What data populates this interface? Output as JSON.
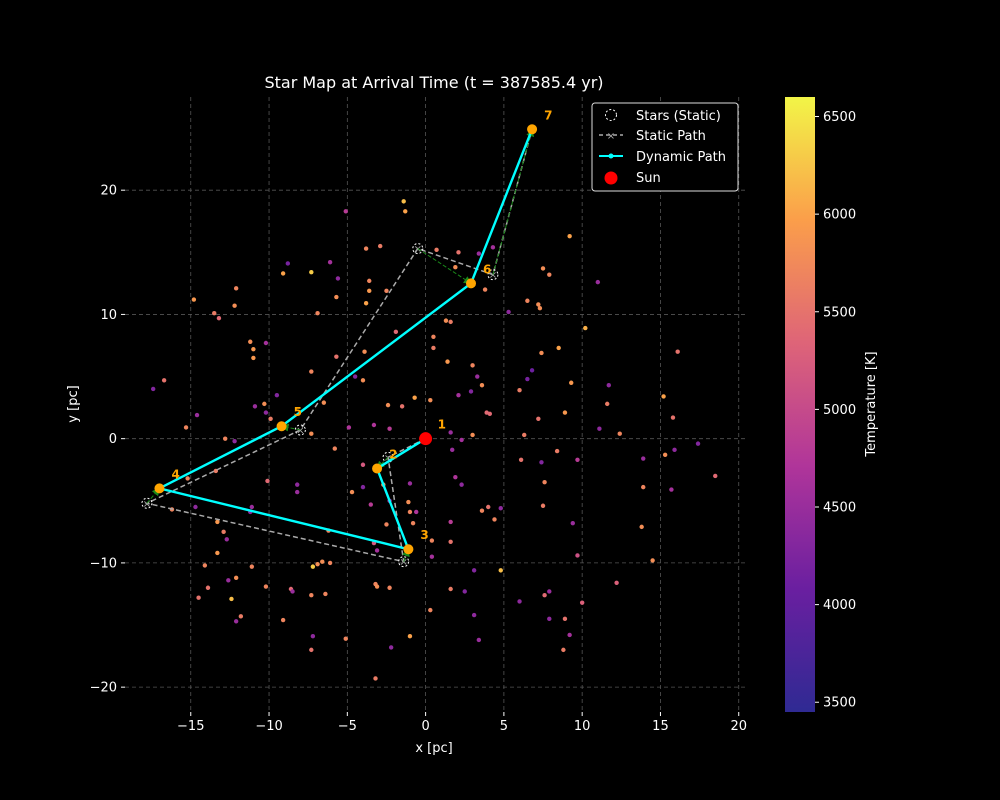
{
  "chart_data": {
    "type": "scatter",
    "title": "Star Map at Arrival Time (t = 387585.4 yr)",
    "xlabel": "x [pc]",
    "ylabel": "y [pc]",
    "xlim": [
      -19.2,
      20.4
    ],
    "ylim": [
      -22.0,
      27.5
    ],
    "x_ticks": [
      -15,
      -10,
      -5,
      0,
      5,
      10,
      15,
      20
    ],
    "y_ticks": [
      -20,
      -10,
      0,
      10,
      20
    ],
    "grid": true,
    "legend_position": "top-right",
    "legend": [
      {
        "key": "stars",
        "label": "Stars (Static)"
      },
      {
        "key": "static",
        "label": "Static Path"
      },
      {
        "key": "dynamic",
        "label": "Dynamic Path"
      },
      {
        "key": "sun",
        "label": "Sun"
      }
    ],
    "colorbar": {
      "label": "Temperature [K]",
      "min": 3450,
      "max": 6600,
      "ticks": [
        3500,
        4000,
        4500,
        5000,
        5500,
        6000,
        6500
      ]
    },
    "colors": {
      "background": "#000000",
      "grid": "#555555",
      "dynamic_path": "#00ffff",
      "static_path": "#aaaaaa",
      "arrow": "#1a8a1a",
      "sun": "#ff0000",
      "waypoint": "#ffa500",
      "label": "#ffa500"
    },
    "sun": {
      "x": 0,
      "y": 0
    },
    "dynamic_path": [
      {
        "label": "1",
        "x": 0.0,
        "y": 0.0
      },
      {
        "label": "2",
        "x": -3.1,
        "y": -2.4
      },
      {
        "label": "3",
        "x": -1.1,
        "y": -8.9
      },
      {
        "label": "4",
        "x": -17.0,
        "y": -4.0
      },
      {
        "label": "5",
        "x": -9.2,
        "y": 1.0
      },
      {
        "label": "6",
        "x": 2.9,
        "y": 12.5
      },
      {
        "label": "7",
        "x": 6.8,
        "y": 24.9
      }
    ],
    "static_path": [
      {
        "x": 0.0,
        "y": 0.0
      },
      {
        "x": -2.4,
        "y": -1.5
      },
      {
        "x": -1.4,
        "y": -9.9
      },
      {
        "x": -17.8,
        "y": -5.2
      },
      {
        "x": -8.0,
        "y": 0.7
      },
      {
        "x": -0.5,
        "y": 15.3
      },
      {
        "x": 4.3,
        "y": 13.2
      },
      {
        "x": 6.8,
        "y": 24.9
      }
    ],
    "background_stars": [
      {
        "x": -14.8,
        "y": 11.2,
        "t": 5900
      },
      {
        "x": -12.1,
        "y": 12.1,
        "t": 5700
      },
      {
        "x": -12.2,
        "y": 10.7,
        "t": 5800
      },
      {
        "x": -11.2,
        "y": 7.8,
        "t": 5800
      },
      {
        "x": -11.0,
        "y": 7.2,
        "t": 5900
      },
      {
        "x": -11.0,
        "y": 6.5,
        "t": 5900
      },
      {
        "x": -13.5,
        "y": 10.1,
        "t": 5600
      },
      {
        "x": -13.2,
        "y": 9.7,
        "t": 5400
      },
      {
        "x": -10.2,
        "y": 7.7,
        "t": 4600
      },
      {
        "x": -9.1,
        "y": 13.3,
        "t": 6000
      },
      {
        "x": -7.3,
        "y": 13.4,
        "t": 6300
      },
      {
        "x": -8.8,
        "y": 14.1,
        "t": 4200
      },
      {
        "x": -6.9,
        "y": 10.1,
        "t": 5700
      },
      {
        "x": -5.7,
        "y": 11.4,
        "t": 5800
      },
      {
        "x": -5.1,
        "y": 18.3,
        "t": 4800
      },
      {
        "x": -3.8,
        "y": 15.3,
        "t": 5700
      },
      {
        "x": -2.9,
        "y": 15.5,
        "t": 5600
      },
      {
        "x": -1.4,
        "y": 19.1,
        "t": 6200
      },
      {
        "x": -3.6,
        "y": 12.7,
        "t": 5700
      },
      {
        "x": -3.6,
        "y": 11.9,
        "t": 5900
      },
      {
        "x": -3.8,
        "y": 10.9,
        "t": 6000
      },
      {
        "x": -2.5,
        "y": 11.9,
        "t": 5700
      },
      {
        "x": -1.9,
        "y": 8.6,
        "t": 5400
      },
      {
        "x": -1.3,
        "y": 18.3,
        "t": 6000
      },
      {
        "x": 0.7,
        "y": 15.2,
        "t": 5600
      },
      {
        "x": 2.1,
        "y": 15.0,
        "t": 5500
      },
      {
        "x": 1.9,
        "y": 13.8,
        "t": 5800
      },
      {
        "x": 4.3,
        "y": 15.4,
        "t": 4600
      },
      {
        "x": 3.4,
        "y": 14.9,
        "t": 4500
      },
      {
        "x": 3.8,
        "y": 12.0,
        "t": 5700
      },
      {
        "x": 1.3,
        "y": 9.5,
        "t": 5800
      },
      {
        "x": 1.6,
        "y": 9.4,
        "t": 5600
      },
      {
        "x": 0.5,
        "y": 8.2,
        "t": 5700
      },
      {
        "x": 0.5,
        "y": 7.3,
        "t": 5600
      },
      {
        "x": 1.4,
        "y": 6.2,
        "t": 5900
      },
      {
        "x": 3.0,
        "y": 5.9,
        "t": 5700
      },
      {
        "x": 3.6,
        "y": 4.3,
        "t": 5800
      },
      {
        "x": 2.9,
        "y": 3.8,
        "t": 4300
      },
      {
        "x": 3.3,
        "y": 5.0,
        "t": 4500
      },
      {
        "x": 6.5,
        "y": 11.1,
        "t": 5700
      },
      {
        "x": 7.2,
        "y": 10.8,
        "t": 5800
      },
      {
        "x": 7.3,
        "y": 10.5,
        "t": 5800
      },
      {
        "x": 7.5,
        "y": 13.7,
        "t": 5800
      },
      {
        "x": 7.9,
        "y": 13.2,
        "t": 5700
      },
      {
        "x": 9.2,
        "y": 16.3,
        "t": 6000
      },
      {
        "x": 11.0,
        "y": 12.6,
        "t": 4500
      },
      {
        "x": 10.2,
        "y": 8.9,
        "t": 6100
      },
      {
        "x": 8.5,
        "y": 7.3,
        "t": 6000
      },
      {
        "x": 7.4,
        "y": 6.9,
        "t": 5800
      },
      {
        "x": 9.3,
        "y": 4.5,
        "t": 5900
      },
      {
        "x": 6.0,
        "y": 3.9,
        "t": 5600
      },
      {
        "x": 6.5,
        "y": 4.8,
        "t": 4200
      },
      {
        "x": 6.8,
        "y": 5.5,
        "t": 4100
      },
      {
        "x": 8.9,
        "y": 2.1,
        "t": 5900
      },
      {
        "x": 11.7,
        "y": 4.3,
        "t": 4400
      },
      {
        "x": 11.6,
        "y": 2.8,
        "t": 5600
      },
      {
        "x": 12.4,
        "y": 0.4,
        "t": 5700
      },
      {
        "x": 15.2,
        "y": 3.4,
        "t": 6000
      },
      {
        "x": 15.8,
        "y": 1.7,
        "t": 5500
      },
      {
        "x": 16.1,
        "y": 7.0,
        "t": 5500
      },
      {
        "x": 15.3,
        "y": -1.3,
        "t": 5800
      },
      {
        "x": 15.9,
        "y": -0.9,
        "t": 4400
      },
      {
        "x": 13.9,
        "y": -1.6,
        "t": 4500
      },
      {
        "x": 17.4,
        "y": -0.4,
        "t": 4300
      },
      {
        "x": 18.5,
        "y": -3.0,
        "t": 5400
      },
      {
        "x": 15.7,
        "y": -4.1,
        "t": 4600
      },
      {
        "x": 13.9,
        "y": -3.9,
        "t": 5700
      },
      {
        "x": 13.8,
        "y": -7.1,
        "t": 5800
      },
      {
        "x": 14.5,
        "y": -9.8,
        "t": 5800
      },
      {
        "x": 12.2,
        "y": -11.6,
        "t": 5300
      },
      {
        "x": 10.0,
        "y": -13.2,
        "t": 5300
      },
      {
        "x": 8.9,
        "y": -14.5,
        "t": 5500
      },
      {
        "x": 9.2,
        "y": -15.8,
        "t": 4600
      },
      {
        "x": 8.8,
        "y": -17.0,
        "t": 5600
      },
      {
        "x": 7.9,
        "y": -14.5,
        "t": 4400
      },
      {
        "x": 7.6,
        "y": -12.6,
        "t": 5400
      },
      {
        "x": 7.9,
        "y": -12.3,
        "t": 4500
      },
      {
        "x": 7.5,
        "y": -5.4,
        "t": 5600
      },
      {
        "x": 7.6,
        "y": -3.5,
        "t": 5700
      },
      {
        "x": 9.7,
        "y": -9.4,
        "t": 5100
      },
      {
        "x": 9.4,
        "y": -6.8,
        "t": 4500
      },
      {
        "x": 9.7,
        "y": -1.7,
        "t": 4800
      },
      {
        "x": 11.1,
        "y": 0.8,
        "t": 4400
      },
      {
        "x": 8.4,
        "y": -1.0,
        "t": 5600
      },
      {
        "x": 7.4,
        "y": -1.9,
        "t": 4300
      },
      {
        "x": 7.2,
        "y": 1.6,
        "t": 5500
      },
      {
        "x": 6.3,
        "y": 0.3,
        "t": 5600
      },
      {
        "x": 6.1,
        "y": -1.7,
        "t": 5500
      },
      {
        "x": 6.0,
        "y": -13.1,
        "t": 4400
      },
      {
        "x": 4.8,
        "y": -10.6,
        "t": 6200
      },
      {
        "x": 3.1,
        "y": -10.6,
        "t": 4300
      },
      {
        "x": 3.1,
        "y": -14.2,
        "t": 4400
      },
      {
        "x": 3.4,
        "y": -16.2,
        "t": 4500
      },
      {
        "x": 4.4,
        "y": -6.5,
        "t": 5700
      },
      {
        "x": 4.0,
        "y": -5.5,
        "t": 5500
      },
      {
        "x": 3.6,
        "y": -5.8,
        "t": 5700
      },
      {
        "x": 4.8,
        "y": -5.6,
        "t": 4400
      },
      {
        "x": 1.6,
        "y": -6.7,
        "t": 4800
      },
      {
        "x": 1.6,
        "y": -8.3,
        "t": 5500
      },
      {
        "x": 0.4,
        "y": -8.2,
        "t": 5700
      },
      {
        "x": 0.4,
        "y": -9.5,
        "t": 4600
      },
      {
        "x": -0.8,
        "y": -6.8,
        "t": 5700
      },
      {
        "x": -1.0,
        "y": -5.9,
        "t": 5700
      },
      {
        "x": -1.1,
        "y": -5.1,
        "t": 5800
      },
      {
        "x": -0.6,
        "y": -5.9,
        "t": 4700
      },
      {
        "x": 1.9,
        "y": -3.1,
        "t": 4700
      },
      {
        "x": 2.3,
        "y": -3.7,
        "t": 4400
      },
      {
        "x": 1.7,
        "y": -0.9,
        "t": 4500
      },
      {
        "x": 2.1,
        "y": 3.5,
        "t": 4600
      },
      {
        "x": 3.9,
        "y": 2.1,
        "t": 5400
      },
      {
        "x": 4.1,
        "y": 2.0,
        "t": 5400
      },
      {
        "x": 3.0,
        "y": 0.3,
        "t": 5800
      },
      {
        "x": -0.7,
        "y": 3.3,
        "t": 6000
      },
      {
        "x": 0.3,
        "y": 3.1,
        "t": 5800
      },
      {
        "x": -1.5,
        "y": 2.6,
        "t": 5500
      },
      {
        "x": -2.4,
        "y": 2.7,
        "t": 5800
      },
      {
        "x": -3.3,
        "y": 1.1,
        "t": 4700
      },
      {
        "x": -2.3,
        "y": 0.8,
        "t": 4800
      },
      {
        "x": -4.0,
        "y": 4.7,
        "t": 5800
      },
      {
        "x": -4.5,
        "y": 5.0,
        "t": 4300
      },
      {
        "x": -3.9,
        "y": 7.0,
        "t": 5800
      },
      {
        "x": -5.7,
        "y": 6.6,
        "t": 5500
      },
      {
        "x": -6.5,
        "y": 2.9,
        "t": 5800
      },
      {
        "x": -7.3,
        "y": 5.4,
        "t": 5700
      },
      {
        "x": -6.1,
        "y": 14.2,
        "t": 4600
      },
      {
        "x": -5.6,
        "y": 12.9,
        "t": 4400
      },
      {
        "x": -9.5,
        "y": 3.5,
        "t": 4300
      },
      {
        "x": -10.3,
        "y": 2.8,
        "t": 5800
      },
      {
        "x": -10.9,
        "y": 2.6,
        "t": 4500
      },
      {
        "x": -10.2,
        "y": 2.1,
        "t": 4400
      },
      {
        "x": -9.9,
        "y": 1.6,
        "t": 5600
      },
      {
        "x": -7.3,
        "y": 0.4,
        "t": 5800
      },
      {
        "x": -5.8,
        "y": -0.8,
        "t": 5700
      },
      {
        "x": -4.9,
        "y": 0.9,
        "t": 4700
      },
      {
        "x": -4.0,
        "y": -2.1,
        "t": 5200
      },
      {
        "x": -4.0,
        "y": -3.9,
        "t": 4300
      },
      {
        "x": -4.7,
        "y": -4.3,
        "t": 5800
      },
      {
        "x": -3.5,
        "y": -5.3,
        "t": 4800
      },
      {
        "x": -3.3,
        "y": -8.4,
        "t": 5200
      },
      {
        "x": -3.1,
        "y": -9.0,
        "t": 4600
      },
      {
        "x": -2.5,
        "y": -6.9,
        "t": 5700
      },
      {
        "x": -2.3,
        "y": -5.0,
        "t": 4500
      },
      {
        "x": -2.7,
        "y": -3.7,
        "t": 5800
      },
      {
        "x": -1.0,
        "y": -3.6,
        "t": 4500
      },
      {
        "x": -6.2,
        "y": -7.4,
        "t": 5700
      },
      {
        "x": -6.6,
        "y": -9.9,
        "t": 5800
      },
      {
        "x": -6.1,
        "y": -10.0,
        "t": 5700
      },
      {
        "x": -6.9,
        "y": -10.1,
        "t": 5800
      },
      {
        "x": -7.2,
        "y": -10.3,
        "t": 6300
      },
      {
        "x": -6.4,
        "y": -12.5,
        "t": 5700
      },
      {
        "x": -7.3,
        "y": -12.6,
        "t": 5700
      },
      {
        "x": -8.6,
        "y": -12.1,
        "t": 5400
      },
      {
        "x": -8.5,
        "y": -12.3,
        "t": 4500
      },
      {
        "x": -9.1,
        "y": -14.6,
        "t": 5700
      },
      {
        "x": -7.2,
        "y": -15.9,
        "t": 4400
      },
      {
        "x": -7.3,
        "y": -17.0,
        "t": 5500
      },
      {
        "x": -5.1,
        "y": -16.1,
        "t": 5700
      },
      {
        "x": -3.2,
        "y": -11.7,
        "t": 5700
      },
      {
        "x": -3.1,
        "y": -11.9,
        "t": 5800
      },
      {
        "x": -2.3,
        "y": -12.0,
        "t": 5700
      },
      {
        "x": -2.2,
        "y": -16.8,
        "t": 4400
      },
      {
        "x": -1.0,
        "y": -15.9,
        "t": 6000
      },
      {
        "x": -3.2,
        "y": -19.3,
        "t": 5600
      },
      {
        "x": 0.3,
        "y": -13.8,
        "t": 5700
      },
      {
        "x": 1.6,
        "y": -12.1,
        "t": 5600
      },
      {
        "x": 2.5,
        "y": -12.3,
        "t": 4300
      },
      {
        "x": -10.2,
        "y": -11.9,
        "t": 5700
      },
      {
        "x": -11.1,
        "y": -10.3,
        "t": 5700
      },
      {
        "x": -12.1,
        "y": -11.2,
        "t": 5800
      },
      {
        "x": -12.6,
        "y": -11.4,
        "t": 4500
      },
      {
        "x": -12.4,
        "y": -12.9,
        "t": 6200
      },
      {
        "x": -11.8,
        "y": -14.3,
        "t": 5600
      },
      {
        "x": -12.1,
        "y": -14.7,
        "t": 4500
      },
      {
        "x": -13.9,
        "y": -12.0,
        "t": 5500
      },
      {
        "x": -14.5,
        "y": -12.8,
        "t": 5500
      },
      {
        "x": -14.1,
        "y": -10.2,
        "t": 5700
      },
      {
        "x": -13.3,
        "y": -9.2,
        "t": 5900
      },
      {
        "x": -12.7,
        "y": -8.1,
        "t": 4500
      },
      {
        "x": -12.9,
        "y": -7.5,
        "t": 5600
      },
      {
        "x": -13.3,
        "y": -6.7,
        "t": 5900
      },
      {
        "x": -11.2,
        "y": -5.9,
        "t": 4400
      },
      {
        "x": -11.1,
        "y": -5.5,
        "t": 4500
      },
      {
        "x": -12.8,
        "y": 0.0,
        "t": 5700
      },
      {
        "x": -12.2,
        "y": -0.2,
        "t": 4400
      },
      {
        "x": -13.4,
        "y": -2.6,
        "t": 5600
      },
      {
        "x": -15.2,
        "y": -3.2,
        "t": 5700
      },
      {
        "x": -15.3,
        "y": 0.9,
        "t": 5700
      },
      {
        "x": -14.6,
        "y": 1.9,
        "t": 4500
      },
      {
        "x": -16.7,
        "y": 4.7,
        "t": 5500
      },
      {
        "x": -17.4,
        "y": 4.0,
        "t": 4300
      },
      {
        "x": -16.2,
        "y": -5.7,
        "t": 5700
      },
      {
        "x": -14.7,
        "y": -5.5,
        "t": 4400
      },
      {
        "x": -10.1,
        "y": -3.4,
        "t": 5400
      },
      {
        "x": -8.2,
        "y": -3.7,
        "t": 4400
      },
      {
        "x": -8.2,
        "y": -4.3,
        "t": 4500
      },
      {
        "x": 1.6,
        "y": 0.5,
        "t": 4500
      },
      {
        "x": 2.3,
        "y": -0.1,
        "t": 4600
      },
      {
        "x": 5.3,
        "y": 10.2,
        "t": 4400
      }
    ]
  }
}
